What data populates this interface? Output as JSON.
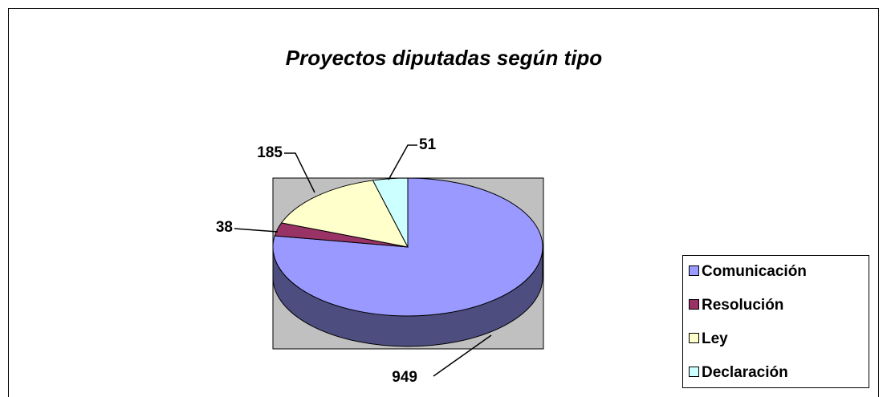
{
  "chart_data": {
    "type": "pie",
    "title": "Proyectos diputadas según tipo",
    "categories": [
      "Comunicación",
      "Resolución",
      "Ley",
      "Declaración"
    ],
    "values": [
      949,
      38,
      185,
      51
    ],
    "colors": [
      "#9999ff",
      "#993366",
      "#ffffcc",
      "#ccffff"
    ],
    "legend": "right"
  }
}
